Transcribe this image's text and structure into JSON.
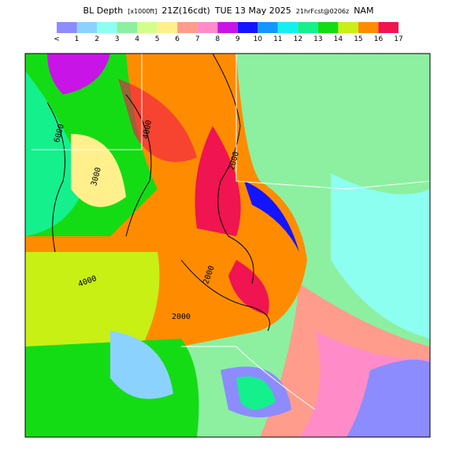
{
  "header": {
    "title_parts": [
      "BL Depth",
      "[x1000ft]",
      "21Z(16cdt)",
      "TUE 13 May 2025",
      "21hrFcst@0206z",
      "NAM"
    ]
  },
  "colorbar": {
    "labels": [
      "<",
      "1",
      "2",
      "3",
      "4",
      "5",
      "6",
      "7",
      "8",
      "9",
      "10",
      "11",
      "12",
      "13",
      "14",
      "15",
      "16",
      "17"
    ],
    "colors": [
      "#b48cf0",
      "#8c8cff",
      "#8cd2ff",
      "#8cfff0",
      "#8cf0a0",
      "#d2ff8c",
      "#fff08c",
      "#ff9c8c",
      "#ff8cc8",
      "#c814e6",
      "#1414ff",
      "#1496ff",
      "#14f0f0",
      "#14f08c",
      "#14dc14",
      "#c8f014",
      "#ff8c00",
      "#f01450"
    ]
  },
  "map": {
    "contour_labels": [
      "6000",
      "4000",
      "3000",
      "2000",
      "2000",
      "4000",
      "2000"
    ]
  }
}
